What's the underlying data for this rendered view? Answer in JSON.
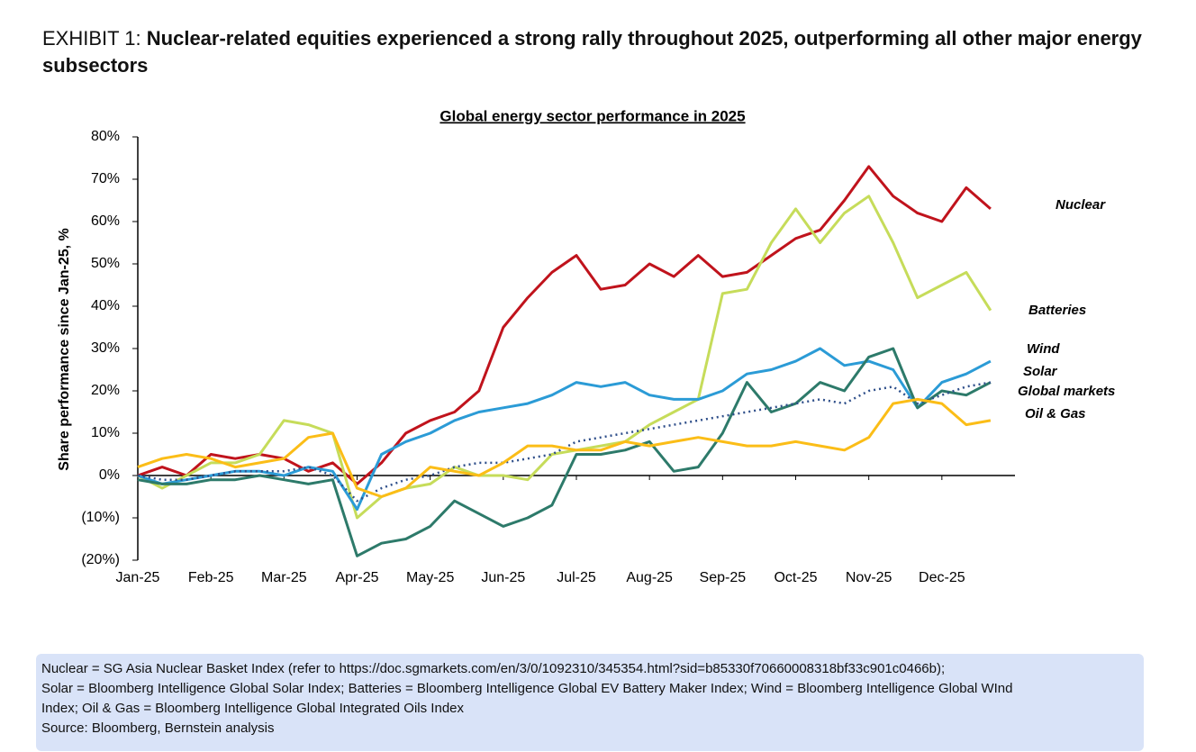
{
  "header": {
    "label": "EXHIBIT 1:",
    "title": "Nuclear-related equities experienced a strong rally throughout 2025, outperforming all other major energy subsectors"
  },
  "chart_data": {
    "type": "line",
    "title": "Global energy sector performance in 2025",
    "y_label": "Share performance since Jan-25, %",
    "categories": [
      "Jan-25",
      null,
      null,
      "Feb-25",
      null,
      null,
      "Mar-25",
      null,
      null,
      "Apr-25",
      null,
      null,
      "May-25",
      null,
      null,
      "Jun-25",
      null,
      null,
      "Jul-25",
      null,
      null,
      "Aug-25",
      null,
      null,
      "Sep-25",
      null,
      null,
      "Oct-25",
      null,
      null,
      "Nov-25",
      null,
      null,
      "Dec-25",
      null,
      null
    ],
    "ylim": [
      -20,
      80
    ],
    "yticks": [
      {
        "value": -20,
        "label": "(20%)"
      },
      {
        "value": -10,
        "label": "(10%)"
      },
      {
        "value": 0,
        "label": "0%"
      },
      {
        "value": 10,
        "label": "10%"
      },
      {
        "value": 20,
        "label": "20%"
      },
      {
        "value": 30,
        "label": "30%"
      },
      {
        "value": 40,
        "label": "40%"
      },
      {
        "value": 50,
        "label": "50%"
      },
      {
        "value": 60,
        "label": "60%"
      },
      {
        "value": 70,
        "label": "70%"
      },
      {
        "value": 80,
        "label": "80%"
      }
    ],
    "series": [
      {
        "name": "Nuclear",
        "color": "#c0131c",
        "values": [
          0,
          2,
          0,
          5,
          4,
          5,
          4,
          1,
          3,
          -2,
          3,
          10,
          13,
          15,
          20,
          35,
          42,
          48,
          52,
          44,
          45,
          50,
          47,
          52,
          47,
          48,
          52,
          56,
          58,
          65,
          73,
          66,
          62,
          60,
          68,
          63
        ]
      },
      {
        "name": "Batteries",
        "color": "#c6dc5a",
        "values": [
          0,
          -3,
          0,
          3,
          3,
          5,
          13,
          12,
          10,
          -10,
          -5,
          -3,
          -2,
          2,
          0,
          0,
          -1,
          5,
          6,
          7,
          8,
          12,
          15,
          18,
          43,
          44,
          55,
          63,
          55,
          62,
          66,
          55,
          42,
          45,
          48,
          39
        ]
      },
      {
        "name": "Wind",
        "color": "#2b9bd6",
        "values": [
          0,
          -2,
          -1,
          0,
          1,
          1,
          0,
          2,
          1,
          -8,
          5,
          8,
          10,
          13,
          15,
          16,
          17,
          19,
          22,
          21,
          22,
          19,
          18,
          18,
          20,
          24,
          25,
          27,
          30,
          26,
          27,
          25,
          16,
          22,
          24,
          27
        ]
      },
      {
        "name": "Solar",
        "color": "#2d7a6a",
        "values": [
          -1,
          -2,
          -2,
          -1,
          -1,
          0,
          -1,
          -2,
          -1,
          -19,
          -16,
          -15,
          -12,
          -6,
          -9,
          -12,
          -10,
          -7,
          5,
          5,
          6,
          8,
          1,
          2,
          10,
          22,
          15,
          17,
          22,
          20,
          28,
          30,
          16,
          20,
          19,
          22
        ]
      },
      {
        "name": "Global markets",
        "color": "#2f4f8a",
        "dashed": true,
        "values": [
          0,
          -1,
          -1,
          0,
          1,
          1,
          1,
          2,
          0,
          -6,
          -3,
          -1,
          0,
          2,
          3,
          3,
          4,
          5,
          8,
          9,
          10,
          11,
          12,
          13,
          14,
          15,
          16,
          17,
          18,
          17,
          20,
          21,
          17,
          19,
          21,
          22
        ]
      },
      {
        "name": "Oil & Gas",
        "color": "#fbbd17",
        "values": [
          2,
          4,
          5,
          4,
          2,
          3,
          4,
          9,
          10,
          -3,
          -5,
          -3,
          2,
          1,
          0,
          3,
          7,
          7,
          6,
          6,
          8,
          7,
          8,
          9,
          8,
          7,
          7,
          8,
          7,
          6,
          9,
          17,
          18,
          17,
          12,
          13
        ]
      }
    ]
  },
  "footnote": {
    "lines": [
      "Nuclear = SG Asia Nuclear Basket Index (refer to https://doc.sgmarkets.com/en/3/0/1092310/345354.html?sid=b85330f70660008318bf33c901c0466b);",
      "Solar = Bloomberg Intelligence Global Solar Index; Batteries = Bloomberg Intelligence Global EV Battery Maker Index; Wind = Bloomberg Intelligence Global WInd",
      "Index; Oil & Gas = Bloomberg Intelligence Global Integrated Oils Index"
    ],
    "source": "Source: Bloomberg, Bernstein analysis"
  }
}
